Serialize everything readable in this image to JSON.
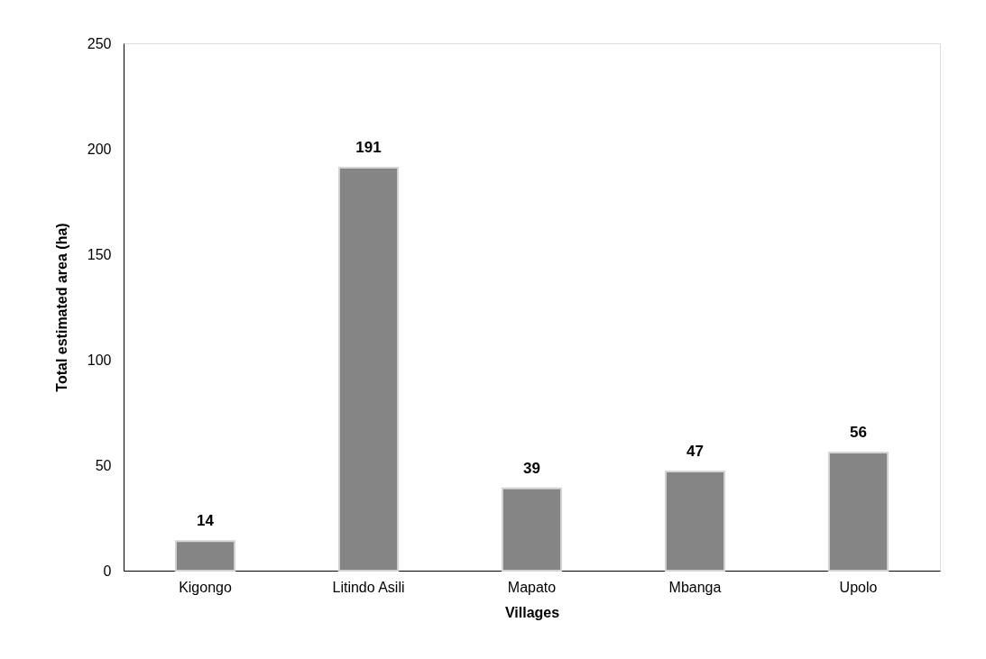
{
  "chart_data": {
    "type": "bar",
    "xlabel": "Villages",
    "ylabel": "Total estimated area (ha)",
    "categories": [
      "Kigongo",
      "Litindo Asili",
      "Mapato",
      "Mbanga",
      "Upolo"
    ],
    "values": [
      14,
      191,
      39,
      47,
      56
    ],
    "color": "#858585",
    "ylim": [
      0,
      250
    ],
    "yticks": [
      0,
      50,
      100,
      150,
      200,
      250
    ],
    "grid": false,
    "data_labels": true
  }
}
